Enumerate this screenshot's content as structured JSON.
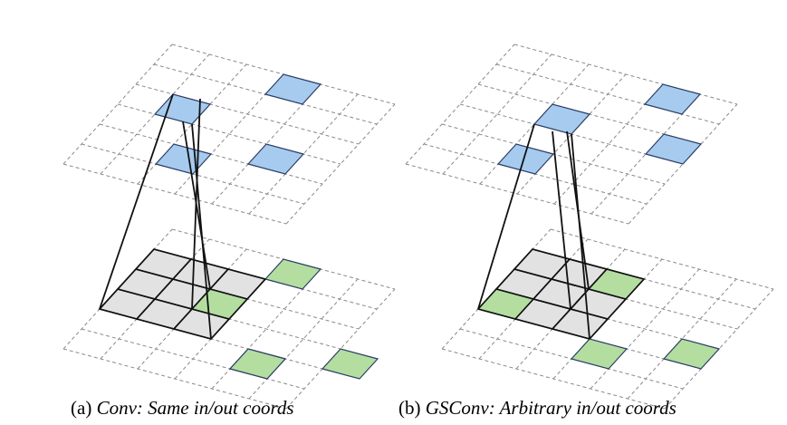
{
  "colors": {
    "grid_line": "#8a8a8a",
    "output_cell": "#a6cbee",
    "input_nonzero_cell": "#b3dea0",
    "kernel_cell": "#e2e2e2",
    "kernel_line": "#111111",
    "cell_border": "#2c3d66"
  },
  "panels": [
    {
      "id": "a",
      "caption_label": "(a)",
      "caption_text": "Conv: Same in/out coords"
    },
    {
      "id": "b",
      "caption_label": "(b)",
      "caption_text": "GSConv: Arbitrary in/out coords"
    }
  ]
}
